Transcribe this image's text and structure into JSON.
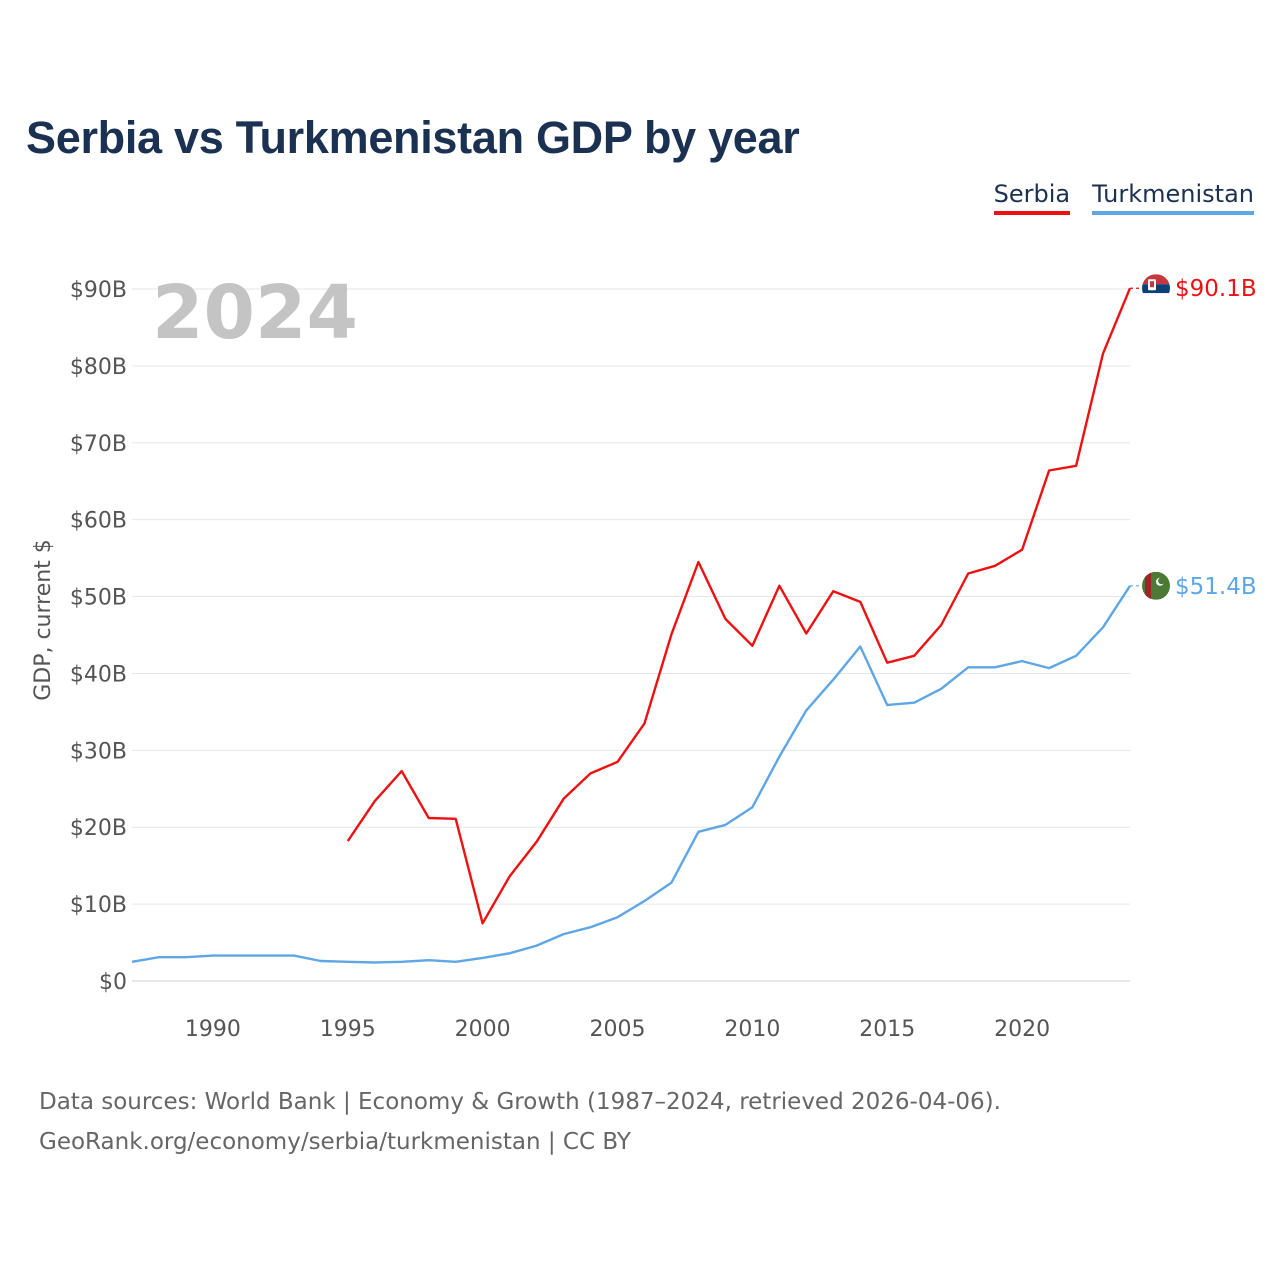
{
  "chart_data": {
    "type": "line",
    "title": "Serbia vs Turkmenistan GDP by year",
    "ylabel": "GDP, current $",
    "xlabel": "",
    "xlim": [
      1987,
      2024
    ],
    "ylim": [
      0,
      90
    ],
    "yticks": [
      0,
      10,
      20,
      30,
      40,
      50,
      60,
      70,
      80,
      90
    ],
    "ytick_labels": [
      "$0",
      "$10B",
      "$20B",
      "$30B",
      "$40B",
      "$50B",
      "$60B",
      "$70B",
      "$80B",
      "$90B"
    ],
    "xticks": [
      1990,
      1995,
      2000,
      2005,
      2010,
      2015,
      2020
    ],
    "xtick_labels": [
      "1990",
      "1995",
      "2000",
      "2005",
      "2010",
      "2015",
      "2020"
    ],
    "grid": true,
    "legend_position": "top-right",
    "current_year_label": "2024",
    "series": [
      {
        "name": "Serbia",
        "color": "#ee1111",
        "end_label": "$90.1B",
        "x": [
          1995,
          1996,
          1997,
          1998,
          1999,
          2000,
          2001,
          2002,
          2003,
          2004,
          2005,
          2006,
          2007,
          2008,
          2009,
          2010,
          2011,
          2012,
          2013,
          2014,
          2015,
          2016,
          2017,
          2018,
          2019,
          2020,
          2021,
          2022,
          2023,
          2024
        ],
        "values": [
          18.2,
          23.4,
          27.3,
          21.2,
          21.1,
          7.5,
          13.6,
          18.1,
          23.7,
          27.0,
          28.5,
          33.5,
          45.1,
          54.5,
          47.1,
          43.6,
          51.4,
          45.2,
          50.7,
          49.3,
          41.4,
          42.3,
          46.3,
          53.0,
          54.0,
          56.1,
          66.4,
          67.0,
          81.6,
          90.1
        ]
      },
      {
        "name": "Turkmenistan",
        "color": "#5ea6e6",
        "end_label": "$51.4B",
        "x": [
          1987,
          1988,
          1989,
          1990,
          1991,
          1992,
          1993,
          1994,
          1995,
          1996,
          1997,
          1998,
          1999,
          2000,
          2001,
          2002,
          2003,
          2004,
          2005,
          2006,
          2007,
          2008,
          2009,
          2010,
          2011,
          2012,
          2013,
          2014,
          2015,
          2016,
          2017,
          2018,
          2019,
          2020,
          2021,
          2022,
          2023,
          2024
        ],
        "values": [
          2.5,
          3.1,
          3.1,
          3.3,
          3.3,
          3.3,
          3.3,
          2.6,
          2.5,
          2.4,
          2.5,
          2.7,
          2.5,
          3.0,
          3.6,
          4.6,
          6.1,
          7.0,
          8.3,
          10.4,
          12.8,
          19.4,
          20.3,
          22.6,
          29.2,
          35.2,
          39.2,
          43.5,
          35.9,
          36.2,
          38.0,
          40.8,
          40.8,
          41.6,
          40.7,
          42.3,
          46.0,
          51.4
        ]
      }
    ]
  },
  "footer": {
    "sources": "Data sources: World Bank | Economy & Growth (1987–2024, retrieved 2026-04-06).",
    "credit": "GeoRank.org/economy/serbia/turkmenistan | CC BY"
  },
  "flags": {
    "serbia_icon": "serbia-flag-icon",
    "turkmenistan_icon": "turkmenistan-flag-icon"
  }
}
